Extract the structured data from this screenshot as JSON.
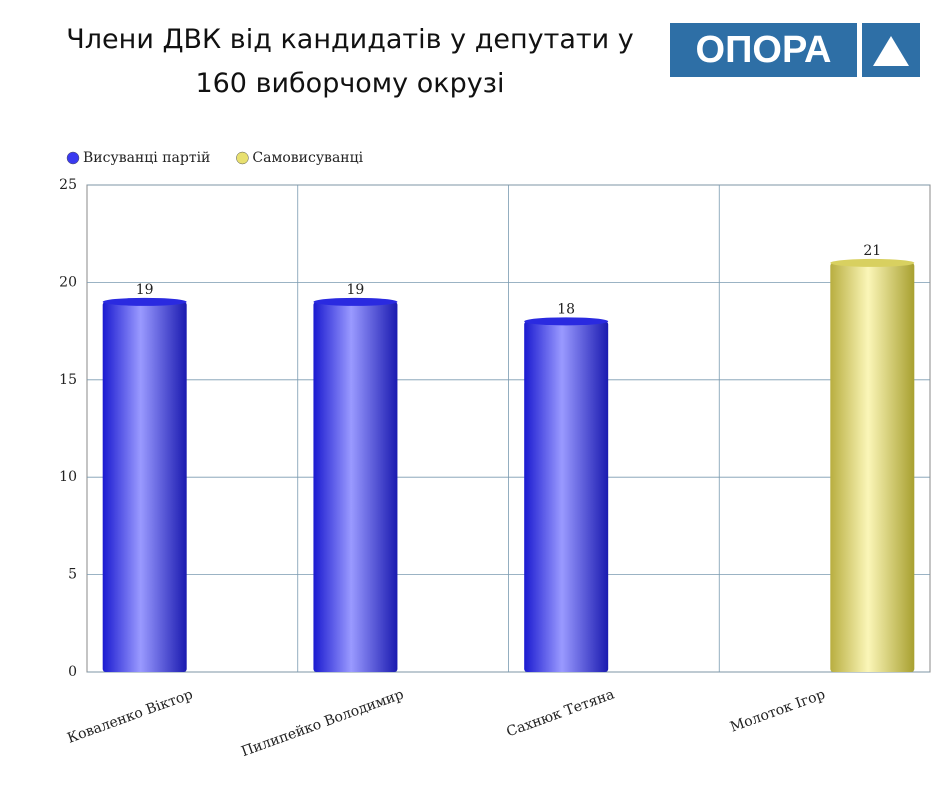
{
  "logo": "ОПОРА",
  "chart_data": {
    "type": "bar",
    "title": "Члени ДВК   від  кандидатів у депутати  у 160 виборчому окрузі",
    "categories": [
      "Коваленко Віктор",
      "Пилипейко Володимир",
      "Сахнюк Тетяна",
      "Молоток Ігор"
    ],
    "series": [
      {
        "name": "Висуванці партій",
        "color": "#3a3af0",
        "values": [
          19,
          19,
          18,
          null
        ]
      },
      {
        "name": "Самовисуванці",
        "color": "#e8e070",
        "values": [
          null,
          null,
          null,
          21
        ]
      }
    ],
    "ylim": [
      0,
      25
    ],
    "yticks": [
      0,
      5,
      10,
      15,
      20,
      25
    ],
    "grid": true,
    "legend": "top-left"
  }
}
